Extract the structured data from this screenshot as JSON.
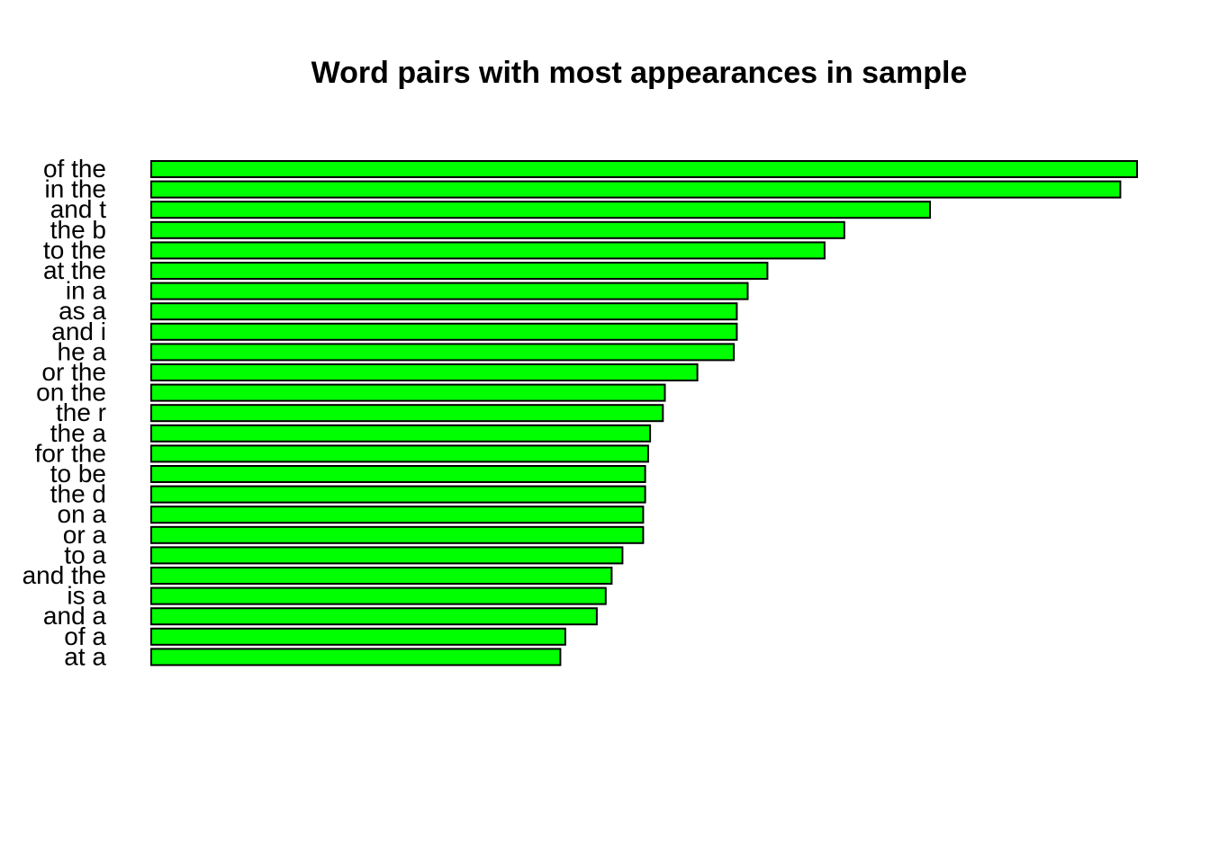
{
  "chart_data": {
    "type": "bar",
    "orientation": "horizontal",
    "title": "Word pairs with most appearances in sample",
    "xlabel": "",
    "ylabel": "",
    "bar_color": "#00ff00",
    "bar_border_color": "#000000",
    "grid": false,
    "legend": "none",
    "xlim": [
      0,
      100
    ],
    "categories": [
      "of the",
      "in the",
      "and t",
      "the b",
      "to the",
      "at the",
      "in a",
      "as a",
      "and i",
      "he a",
      "or the",
      "on the",
      "the r",
      "the a",
      "for the",
      "to be",
      "the d",
      "on a",
      "or a",
      "to a",
      "and the",
      "is a",
      "and a",
      "of a",
      "at a"
    ],
    "values": [
      100,
      98.3,
      79,
      70.3,
      68.3,
      62.5,
      60.5,
      59.4,
      59.4,
      59.1,
      55.4,
      52.1,
      51.9,
      50.6,
      50.4,
      50.1,
      50.1,
      49.9,
      49.9,
      47.8,
      46.7,
      46.1,
      45.2,
      42,
      41.5
    ]
  }
}
